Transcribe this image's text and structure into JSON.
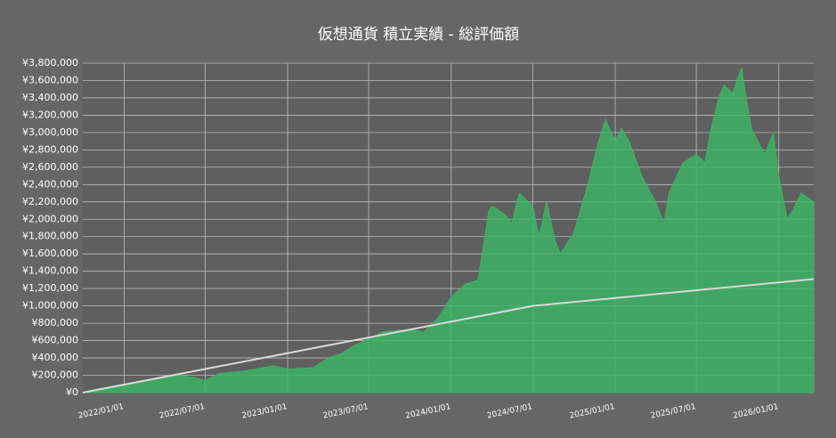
{
  "chart_data": {
    "type": "area",
    "title": "仮想通貨 積立実績 - 総評価額",
    "xlim": [
      "2021/10/01",
      "2026/03/20"
    ],
    "xticks": [
      "2022/01/01",
      "2022/07/01",
      "2023/01/01",
      "2023/07/01",
      "2024/01/01",
      "2024/07/01",
      "2025/01/01",
      "2025/07/01",
      "2026/01/01"
    ],
    "ylim": [
      0,
      3800000
    ],
    "yticks": [
      {
        "value": 0,
        "label": "¥0"
      },
      {
        "value": 200000,
        "label": "¥200,000"
      },
      {
        "value": 400000,
        "label": "¥400,000"
      },
      {
        "value": 600000,
        "label": "¥600,000"
      },
      {
        "value": 800000,
        "label": "¥800,000"
      },
      {
        "value": 1000000,
        "label": "¥1,000,000"
      },
      {
        "value": 1200000,
        "label": "¥1,200,000"
      },
      {
        "value": 1400000,
        "label": "¥1,400,000"
      },
      {
        "value": 1600000,
        "label": "¥1,600,000"
      },
      {
        "value": 1800000,
        "label": "¥1,800,000"
      },
      {
        "value": 2000000,
        "label": "¥2,000,000"
      },
      {
        "value": 2200000,
        "label": "¥2,200,000"
      },
      {
        "value": 2400000,
        "label": "¥2,400,000"
      },
      {
        "value": 2600000,
        "label": "¥2,600,000"
      },
      {
        "value": 2800000,
        "label": "¥2,800,000"
      },
      {
        "value": 3000000,
        "label": "¥3,000,000"
      },
      {
        "value": 3200000,
        "label": "¥3,200,000"
      },
      {
        "value": 3400000,
        "label": "¥3,400,000"
      },
      {
        "value": 3600000,
        "label": "¥3,600,000"
      },
      {
        "value": 3800000,
        "label": "¥3,800,000"
      }
    ],
    "grid": true,
    "series": [
      {
        "color": "#3cb364",
        "kind": "area",
        "x": [
          "2021/10/01",
          "2021/11/01",
          "2022/01/01",
          "2022/03/01",
          "2022/05/01",
          "2022/06/01",
          "2022/07/01",
          "2022/08/01",
          "2022/10/01",
          "2022/12/01",
          "2023/01/01",
          "2023/03/01",
          "2023/04/01",
          "2023/05/01",
          "2023/06/01",
          "2023/07/01",
          "2023/08/01",
          "2023/10/01",
          "2023/11/01",
          "2023/12/01",
          "2024/01/01",
          "2024/02/01",
          "2024/03/01",
          "2024/03/10",
          "2024/03/25",
          "2024/04/01",
          "2024/05/01",
          "2024/05/15",
          "2024/06/01",
          "2024/07/01",
          "2024/07/15",
          "2024/08/01",
          "2024/08/20",
          "2024/09/01",
          "2024/10/01",
          "2024/11/01",
          "2024/11/20",
          "2024/12/01",
          "2024/12/10",
          "2025/01/01",
          "2025/01/15",
          "2025/02/01",
          "2025/03/01",
          "2025/04/01",
          "2025/04/20",
          "2025/05/01",
          "2025/06/01",
          "2025/07/01",
          "2025/07/20",
          "2025/08/01",
          "2025/08/20",
          "2025/09/01",
          "2025/09/20",
          "2025/10/10",
          "2025/10/20",
          "2025/11/01",
          "2025/11/20",
          "2025/12/01",
          "2025/12/20",
          "2026/01/01",
          "2026/01/20",
          "2026/02/01",
          "2026/02/20",
          "2026/03/20"
        ],
        "values": [
          0,
          40000,
          100000,
          150000,
          200000,
          180000,
          140000,
          220000,
          250000,
          310000,
          270000,
          290000,
          400000,
          450000,
          550000,
          620000,
          700000,
          730000,
          700000,
          850000,
          1100000,
          1250000,
          1300000,
          1600000,
          2100000,
          2150000,
          2050000,
          1950000,
          2300000,
          2150000,
          1800000,
          2200000,
          1750000,
          1600000,
          1850000,
          2400000,
          2800000,
          3000000,
          3150000,
          2900000,
          3050000,
          2900000,
          2500000,
          2200000,
          1950000,
          2300000,
          2650000,
          2750000,
          2650000,
          3000000,
          3400000,
          3550000,
          3450000,
          3750000,
          3400000,
          3050000,
          2850000,
          2750000,
          3000000,
          2500000,
          2000000,
          2100000,
          2300000,
          2200000
        ]
      },
      {
        "color": "#d9d9d9",
        "kind": "line",
        "x": [
          "2021/10/01",
          "2024/07/01",
          "2026/03/20"
        ],
        "values": [
          0,
          1000000,
          1310000
        ]
      }
    ]
  }
}
